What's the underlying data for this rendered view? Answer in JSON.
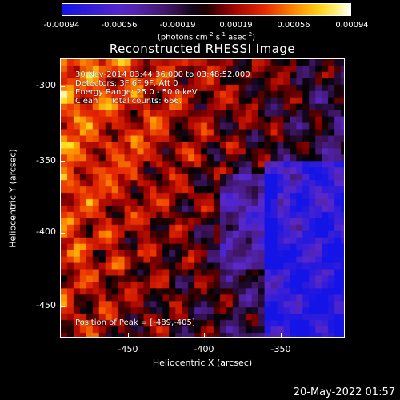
{
  "colorbar": {
    "ticks": [
      "-0.00094",
      "-0.00056",
      "-0.00019",
      "0.00019",
      "0.00056",
      "0.00094"
    ],
    "unit_main": "(photons cm",
    "unit_sup1": "-2",
    "unit_mid1": " s",
    "unit_sup2": "-1",
    "unit_mid2": " asec",
    "unit_sup3": "-2",
    "unit_end": ")"
  },
  "plot": {
    "title": "Reconstructed RHESSI Image",
    "xlabel": "Heliocentric X (arcsec)",
    "ylabel": "Heliocentric Y (arcsec)",
    "xticks": [
      "-450",
      "-400",
      "-350"
    ],
    "yticks": [
      "-300",
      "-350",
      "-400",
      "-450"
    ]
  },
  "annotations": {
    "line1": "30-Nov-2014 03:44:36.000 to 03:48:52.000",
    "line2": "Detectors: 3F 6F 9F, Att 0",
    "line3": "Energy Range: 25.0 - 50.0 keV",
    "line4": "Clean     Total counts: 666.",
    "peak": "Position of Peak = [-489,-405]"
  },
  "footer": {
    "timestamp": "20-May-2022 01:57"
  }
}
